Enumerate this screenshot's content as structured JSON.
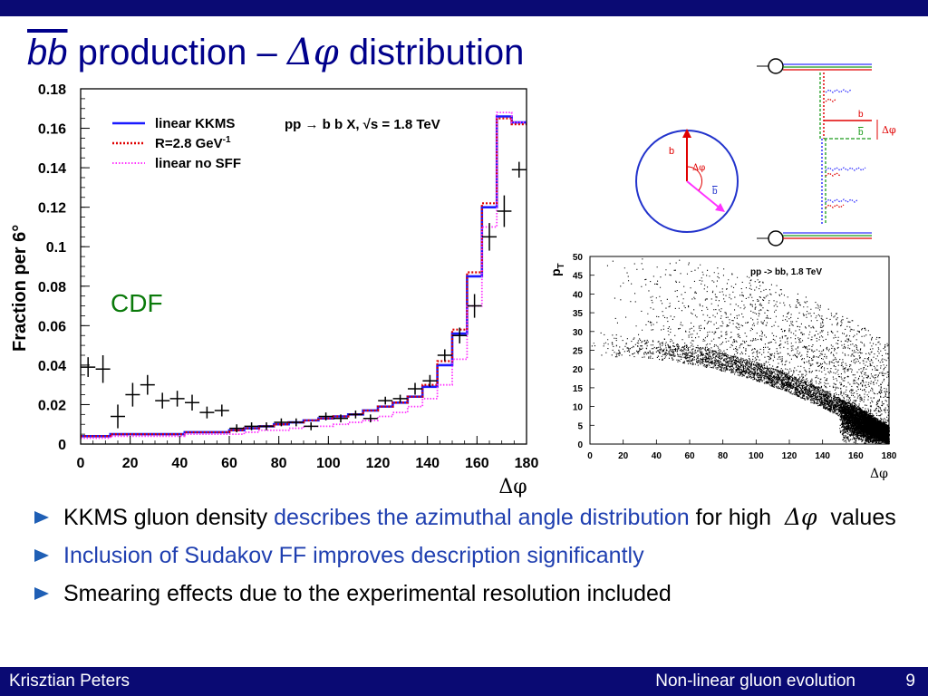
{
  "slide": {
    "title_bb": "bb",
    "title_mid": " production – ",
    "title_greek": "Δφ",
    "title_end": " distribution"
  },
  "colors": {
    "header_bar": "#0a0a73",
    "title": "#00008b",
    "kkms": "#1a1aff",
    "r28": "#e00000",
    "nosff": "#ff33ff",
    "highlight": "#1f3fb0",
    "cdf": "#0a7a0a"
  },
  "chart_data": [
    {
      "type": "histogram",
      "ylabel": "Fraction per 6°",
      "xlabel": "Δφ",
      "xlim": [
        0,
        180
      ],
      "ylim": [
        0,
        0.18
      ],
      "xticks": [
        0,
        20,
        40,
        60,
        80,
        100,
        120,
        140,
        160,
        180
      ],
      "yticks": [
        0,
        0.02,
        0.04,
        0.06,
        0.08,
        0.1,
        0.12,
        0.14,
        0.16,
        0.18
      ],
      "ytick_labels": [
        "0",
        "0.02",
        "0.04",
        "0.06",
        "0.08",
        "0.1",
        "0.12",
        "0.14",
        "0.16",
        "0.18"
      ],
      "annotation": "CDF",
      "process": "pp → b b X, √s = 1.8 TeV",
      "legend_placement": "top-left",
      "bin_edges": [
        0,
        6,
        12,
        18,
        24,
        30,
        36,
        42,
        48,
        54,
        60,
        66,
        72,
        78,
        84,
        90,
        96,
        102,
        108,
        114,
        120,
        126,
        132,
        138,
        144,
        150,
        156,
        162,
        168,
        174,
        180
      ],
      "series": [
        {
          "name": "linear KKMS",
          "style": "solid",
          "values": [
            0.004,
            0.004,
            0.005,
            0.005,
            0.005,
            0.005,
            0.005,
            0.006,
            0.006,
            0.006,
            0.007,
            0.008,
            0.009,
            0.01,
            0.011,
            0.012,
            0.013,
            0.014,
            0.015,
            0.017,
            0.019,
            0.021,
            0.024,
            0.029,
            0.04,
            0.056,
            0.085,
            0.12,
            0.166,
            0.163
          ]
        },
        {
          "name": "R=2.8 GeV",
          "name_sup": "-1",
          "style": "dotted",
          "values": [
            0.004,
            0.004,
            0.005,
            0.005,
            0.005,
            0.005,
            0.005,
            0.006,
            0.006,
            0.006,
            0.007,
            0.008,
            0.009,
            0.01,
            0.011,
            0.012,
            0.013,
            0.014,
            0.015,
            0.017,
            0.019,
            0.021,
            0.024,
            0.03,
            0.042,
            0.058,
            0.087,
            0.122,
            0.165,
            0.162
          ]
        },
        {
          "name": "linear no SFF",
          "style": "dotted",
          "values": [
            0.003,
            0.003,
            0.004,
            0.004,
            0.004,
            0.004,
            0.004,
            0.005,
            0.005,
            0.005,
            0.005,
            0.006,
            0.007,
            0.007,
            0.008,
            0.009,
            0.009,
            0.01,
            0.011,
            0.012,
            0.014,
            0.016,
            0.019,
            0.023,
            0.03,
            0.043,
            0.07,
            0.11,
            0.168,
            0.163
          ]
        }
      ],
      "data_points": {
        "x": [
          3,
          9,
          15,
          21,
          27,
          33,
          39,
          45,
          51,
          57,
          63,
          69,
          75,
          81,
          87,
          93,
          99,
          105,
          111,
          117,
          123,
          129,
          135,
          141,
          147,
          153,
          159,
          165,
          171,
          177
        ],
        "y": [
          0.039,
          0.038,
          0.014,
          0.025,
          0.03,
          0.022,
          0.023,
          0.021,
          0.016,
          0.017,
          0.008,
          0.009,
          0.009,
          0.011,
          0.011,
          0.009,
          0.014,
          0.013,
          0.015,
          0.013,
          0.022,
          0.023,
          0.028,
          0.032,
          0.045,
          0.055,
          0.07,
          0.105,
          0.118,
          0.139
        ],
        "err": [
          0.005,
          0.007,
          0.006,
          0.006,
          0.005,
          0.004,
          0.004,
          0.004,
          0.003,
          0.003,
          0.002,
          0.002,
          0.002,
          0.002,
          0.002,
          0.002,
          0.002,
          0.002,
          0.002,
          0.002,
          0.002,
          0.002,
          0.003,
          0.003,
          0.003,
          0.004,
          0.006,
          0.007,
          0.008,
          0.004
        ]
      }
    },
    {
      "type": "scatter",
      "title": "pp -> bb, 1.8 TeV",
      "ylabel": "p",
      "ylabel_sub": "T",
      "xlabel": "Δφ",
      "xlim": [
        0,
        180
      ],
      "ylim": [
        0,
        50
      ],
      "xticks": [
        0,
        20,
        40,
        60,
        80,
        100,
        120,
        140,
        160,
        180
      ],
      "yticks": [
        0,
        5,
        10,
        15,
        20,
        25,
        30,
        35,
        40,
        45,
        50
      ],
      "density_note": "dense band near Δφ=180 at low pT; sparse points for pT above ~20 at low Δφ"
    }
  ],
  "diagram": {
    "label_b": "b",
    "label_bbar": "b",
    "label_dphi": "Δφ"
  },
  "bullets": {
    "b1_a": "KKMS gluon density ",
    "b1_b": "describes the azimuthal angle distribution",
    "b1_c": " for high ",
    "b1_dphi": "Δφ",
    "b1_d": " values",
    "b2": "Inclusion of Sudakov FF improves description significantly",
    "b3": "Smearing effects due to the experimental resolution included"
  },
  "footer": {
    "author": "Krisztian Peters",
    "talk": "Non-linear gluon evolution",
    "page": "9"
  }
}
